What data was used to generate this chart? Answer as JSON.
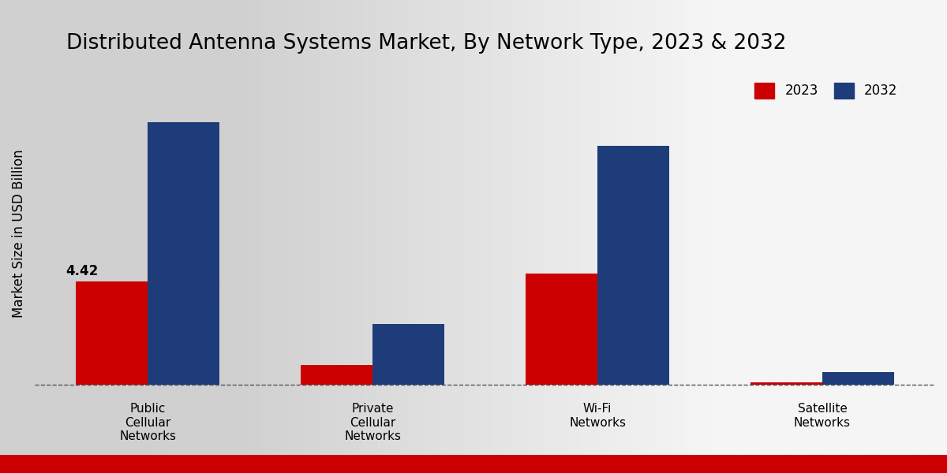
{
  "title": "Distributed Antenna Systems Market, By Network Type, 2023 & 2032",
  "ylabel": "Market Size in USD Billion",
  "categories": [
    "Public\nCellular\nNetworks",
    "Private\nCellular\nNetworks",
    "Wi-Fi\nNetworks",
    "Satellite\nNetworks"
  ],
  "values_2023": [
    4.42,
    0.85,
    4.75,
    0.12
  ],
  "values_2032": [
    11.2,
    2.6,
    10.2,
    0.55
  ],
  "color_2023": "#cc0000",
  "color_2032": "#1f3c7a",
  "annotation_value": "4.42",
  "annotation_bar_index": 0,
  "bar_width": 0.32,
  "ylim": [
    -0.6,
    13.5
  ],
  "hline_y": 0,
  "bg_left": "#d0d0d0",
  "bg_right": "#f5f5f5",
  "title_fontsize": 19,
  "label_fontsize": 12,
  "tick_fontsize": 11,
  "legend_fontsize": 12,
  "annotation_fontsize": 12,
  "bottom_bar_color": "#cc0000",
  "bottom_bar_height": 0.038
}
